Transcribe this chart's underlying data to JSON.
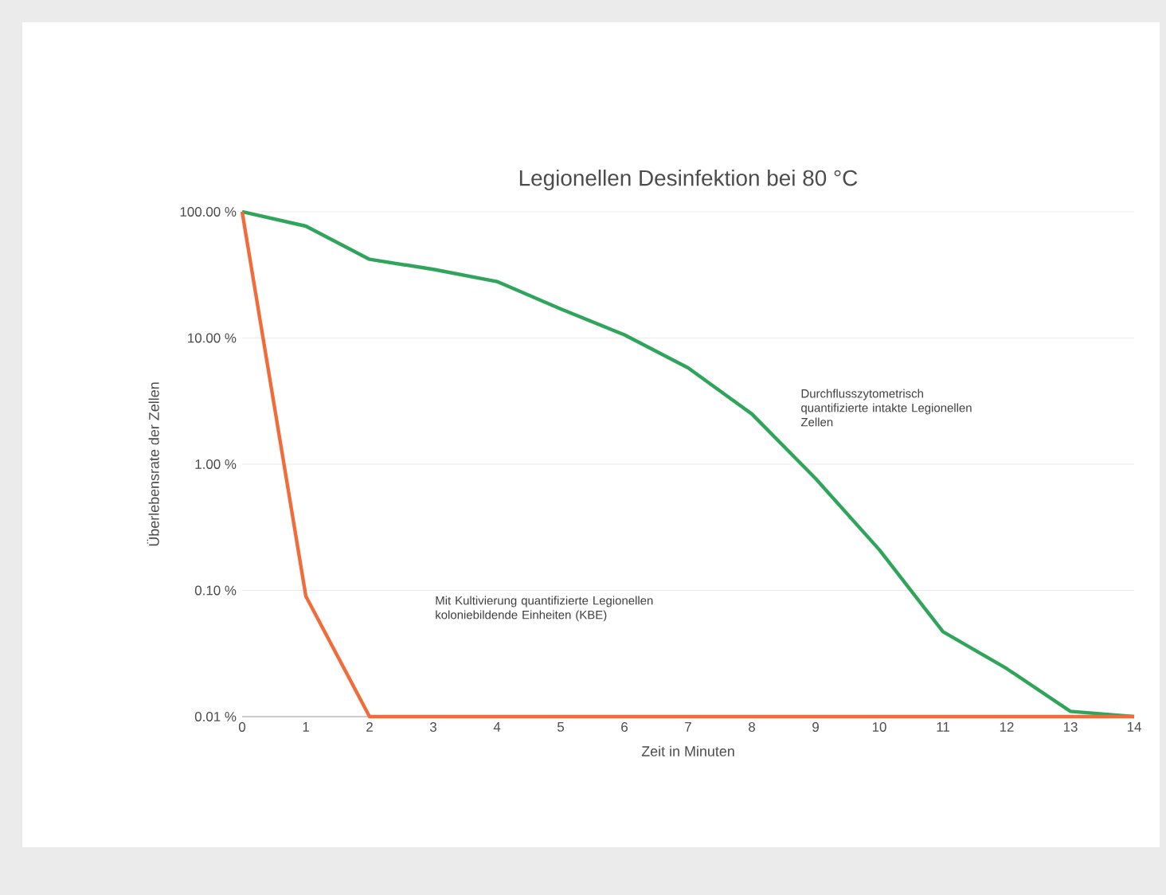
{
  "chart_data": {
    "type": "line",
    "title": "Legionellen Desinfektion bei 80 °C",
    "xlabel": "Zeit in Minuten",
    "ylabel": "Überlebensrate der Zellen",
    "log": "y",
    "grid": "y",
    "marker": "none",
    "line_style": "solid",
    "x": [
      0,
      1,
      2,
      3,
      4,
      5,
      6,
      7,
      8,
      9,
      10,
      11,
      12,
      13,
      14
    ],
    "xlim": [
      0,
      14
    ],
    "xticks": [
      0,
      1,
      2,
      3,
      4,
      5,
      6,
      7,
      8,
      9,
      10,
      11,
      12,
      13,
      14
    ],
    "ylim": [
      0.01,
      100
    ],
    "yticks": [
      {
        "value": 0.01,
        "label": "0.01 %"
      },
      {
        "value": 0.1,
        "label": "0.10 %"
      },
      {
        "value": 1,
        "label": "1.00 %"
      },
      {
        "value": 10,
        "label": "10.00 %"
      },
      {
        "value": 100,
        "label": "100.00 %"
      }
    ],
    "series": [
      {
        "color": "#2ea55a",
        "values": [
          100,
          77,
          42,
          35,
          28,
          17,
          10.6,
          5.8,
          2.5,
          0.77,
          0.21,
          0.047,
          0.024,
          0.011,
          0.01
        ]
      },
      {
        "color": "#f26b3a",
        "values": [
          100,
          0.09,
          0.01,
          0.01,
          0.01,
          0.01,
          0.01,
          0.01,
          0.01,
          0.01,
          0.01,
          0.01,
          0.01,
          0.01,
          0.01
        ]
      }
    ],
    "annotations": [
      "Durchflusszytometrisch quantifizierte intakte Legionellen Zellen",
      "Mit Kultivierung quantifizierte Legionellen koloniebildende Einheiten (KBE)"
    ]
  }
}
